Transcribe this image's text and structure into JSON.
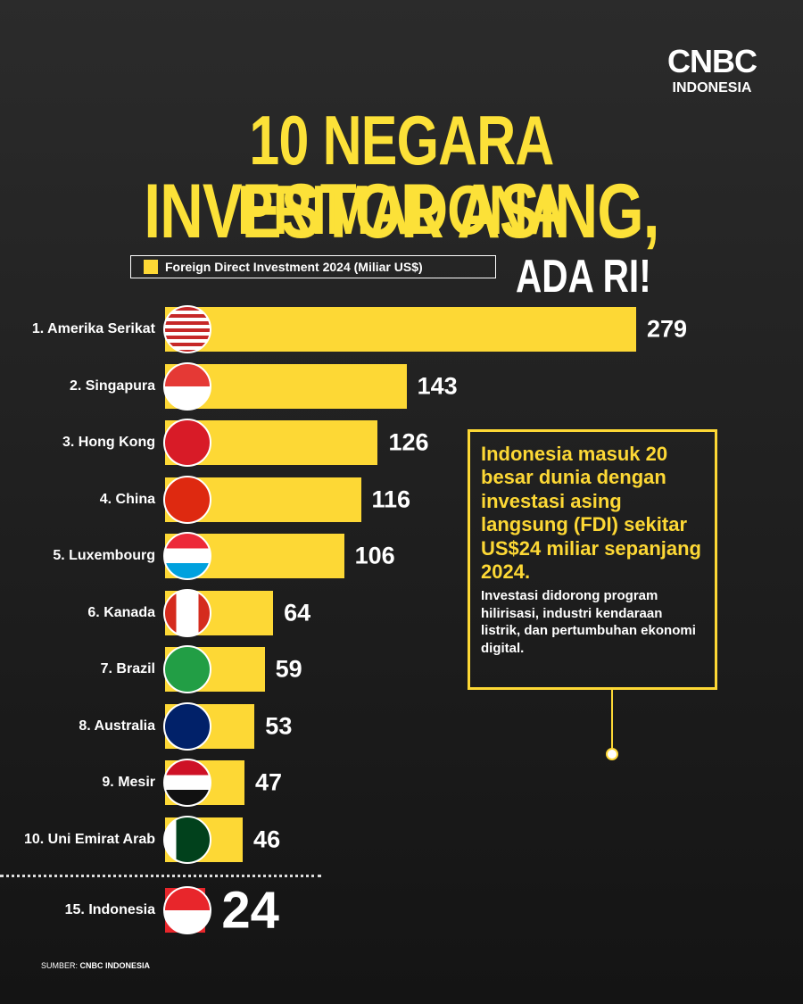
{
  "chart_data": {
    "type": "bar",
    "brand": {
      "name": "CNBC",
      "sub": "INDONESIA"
    },
    "title": [
      "10 NEGARA PRIMADONA",
      "INVESTOR ASING,",
      "ADA RI!"
    ],
    "legend": "Foreign Direct Investment 2024 (Miliar US$)",
    "categories": [
      "1. Amerika Serikat",
      "2. Singapura",
      "3. Hong Kong",
      "4. China",
      "5. Luxembourg",
      "6. Kanada",
      "7. Brazil",
      "8. Australia",
      "9. Mesir",
      "10. Uni Emirat Arab"
    ],
    "values": [
      279,
      143,
      126,
      116,
      106,
      64,
      59,
      53,
      47,
      46
    ],
    "color": "#fdd835",
    "highlight": {
      "category": "15. Indonesia",
      "value": 24,
      "color": "#e8262b"
    },
    "annotation": {
      "headline": "Indonesia masuk 20 besar dunia dengan investasi asing langsung (FDI) sekitar US$24 miliar sepanjang 2024.",
      "body": "Investasi didorong program hilirisasi, industri kendaraan listrik, dan pertumbuhan ekonomi digital."
    },
    "source": {
      "label": "SUMBER:",
      "name": "CNBC INDONESIA"
    }
  }
}
